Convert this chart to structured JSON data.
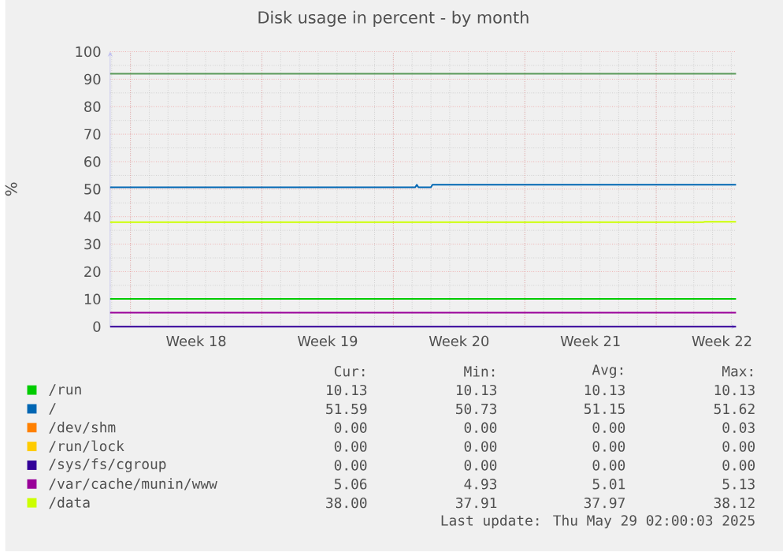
{
  "chart_data": {
    "type": "line",
    "title": "Disk usage in percent - by month",
    "ylabel": "%",
    "xlim": [
      "2025-04-26T22:00",
      "2025-05-30T06:00"
    ],
    "xticks": [
      {
        "value": "2025-05-01T12:00",
        "label": "Week 18"
      },
      {
        "value": "2025-05-08T12:00",
        "label": "Week 19"
      },
      {
        "value": "2025-05-15T12:00",
        "label": "Week 20"
      },
      {
        "value": "2025-05-22T12:00",
        "label": "Week 21"
      },
      {
        "value": "2025-05-29T12:00",
        "label": "Week 22"
      },
      {
        "value": "2025-04-28",
        "label": null
      },
      {
        "value": "2025-05-05",
        "label": null
      },
      {
        "value": "2025-05-12",
        "label": null
      },
      {
        "value": "2025-05-19",
        "label": null
      },
      {
        "value": "2025-05-26",
        "label": null
      }
    ],
    "ylim": [
      0,
      100
    ],
    "yticks": [
      0,
      10,
      20,
      30,
      40,
      50,
      60,
      70,
      80,
      90,
      100
    ],
    "grid": true,
    "legend": "bottom",
    "series": [
      {
        "name": "/run",
        "color": "#00cc00",
        "x": [
          "2025-04-26T22:00",
          "2025-05-30T06:00"
        ],
        "values": [
          10.1,
          10.1
        ]
      },
      {
        "name": "/",
        "color": "#0066b3",
        "x": [
          "2025-04-26T22:00",
          "2025-05-13T04:00",
          "2025-05-13T06:00",
          "2025-05-13T08:00",
          "2025-05-14T00:00",
          "2025-05-14T02:00",
          "2025-05-30T06:00"
        ],
        "values": [
          50.7,
          50.7,
          51.6,
          50.7,
          50.7,
          51.6,
          51.6
        ]
      },
      {
        "name": "/dev/shm",
        "color": "#ff8000"
      },
      {
        "name": "/run/lock",
        "color": "#ffcc00"
      },
      {
        "name": "/sys/fs/cgroup",
        "color": "#330099",
        "x": [
          "2025-04-26T22:00",
          "2025-05-30T06:00"
        ],
        "values": [
          0,
          0
        ]
      },
      {
        "name": "/var/cache/munin/www",
        "color": "#990099",
        "x": [
          "2025-04-26T22:00",
          "2025-05-30T06:00"
        ],
        "values": [
          5.1,
          5.1
        ]
      },
      {
        "name": "/data",
        "color": "#ccff00",
        "x": [
          "2025-04-26T22:00",
          "2025-05-28T12:00",
          "2025-05-28T14:00",
          "2025-05-30T06:00"
        ],
        "values": [
          38.0,
          38.0,
          38.1,
          38.1
        ]
      }
    ],
    "ref_lines": [
      {
        "axis": "y",
        "value": 92,
        "color": "#5a9a5a"
      }
    ],
    "annotations": [
      "Cur:",
      "Min:",
      "Avg:",
      "Max:",
      "10.13",
      "10.13",
      "10.13",
      "10.13",
      "51.59",
      "50.73",
      "51.15",
      "51.62",
      "0.00",
      "0.00",
      "0.00",
      "0.03",
      "0.00",
      "0.00",
      "0.00",
      "0.00",
      "0.00",
      "0.00",
      "0.00",
      "0.00",
      "5.06",
      "4.93",
      "5.01",
      "5.13",
      "38.00",
      "37.91",
      "37.97",
      "38.12",
      "Last update: Thu May 29 02:00:03 2025"
    ]
  }
}
